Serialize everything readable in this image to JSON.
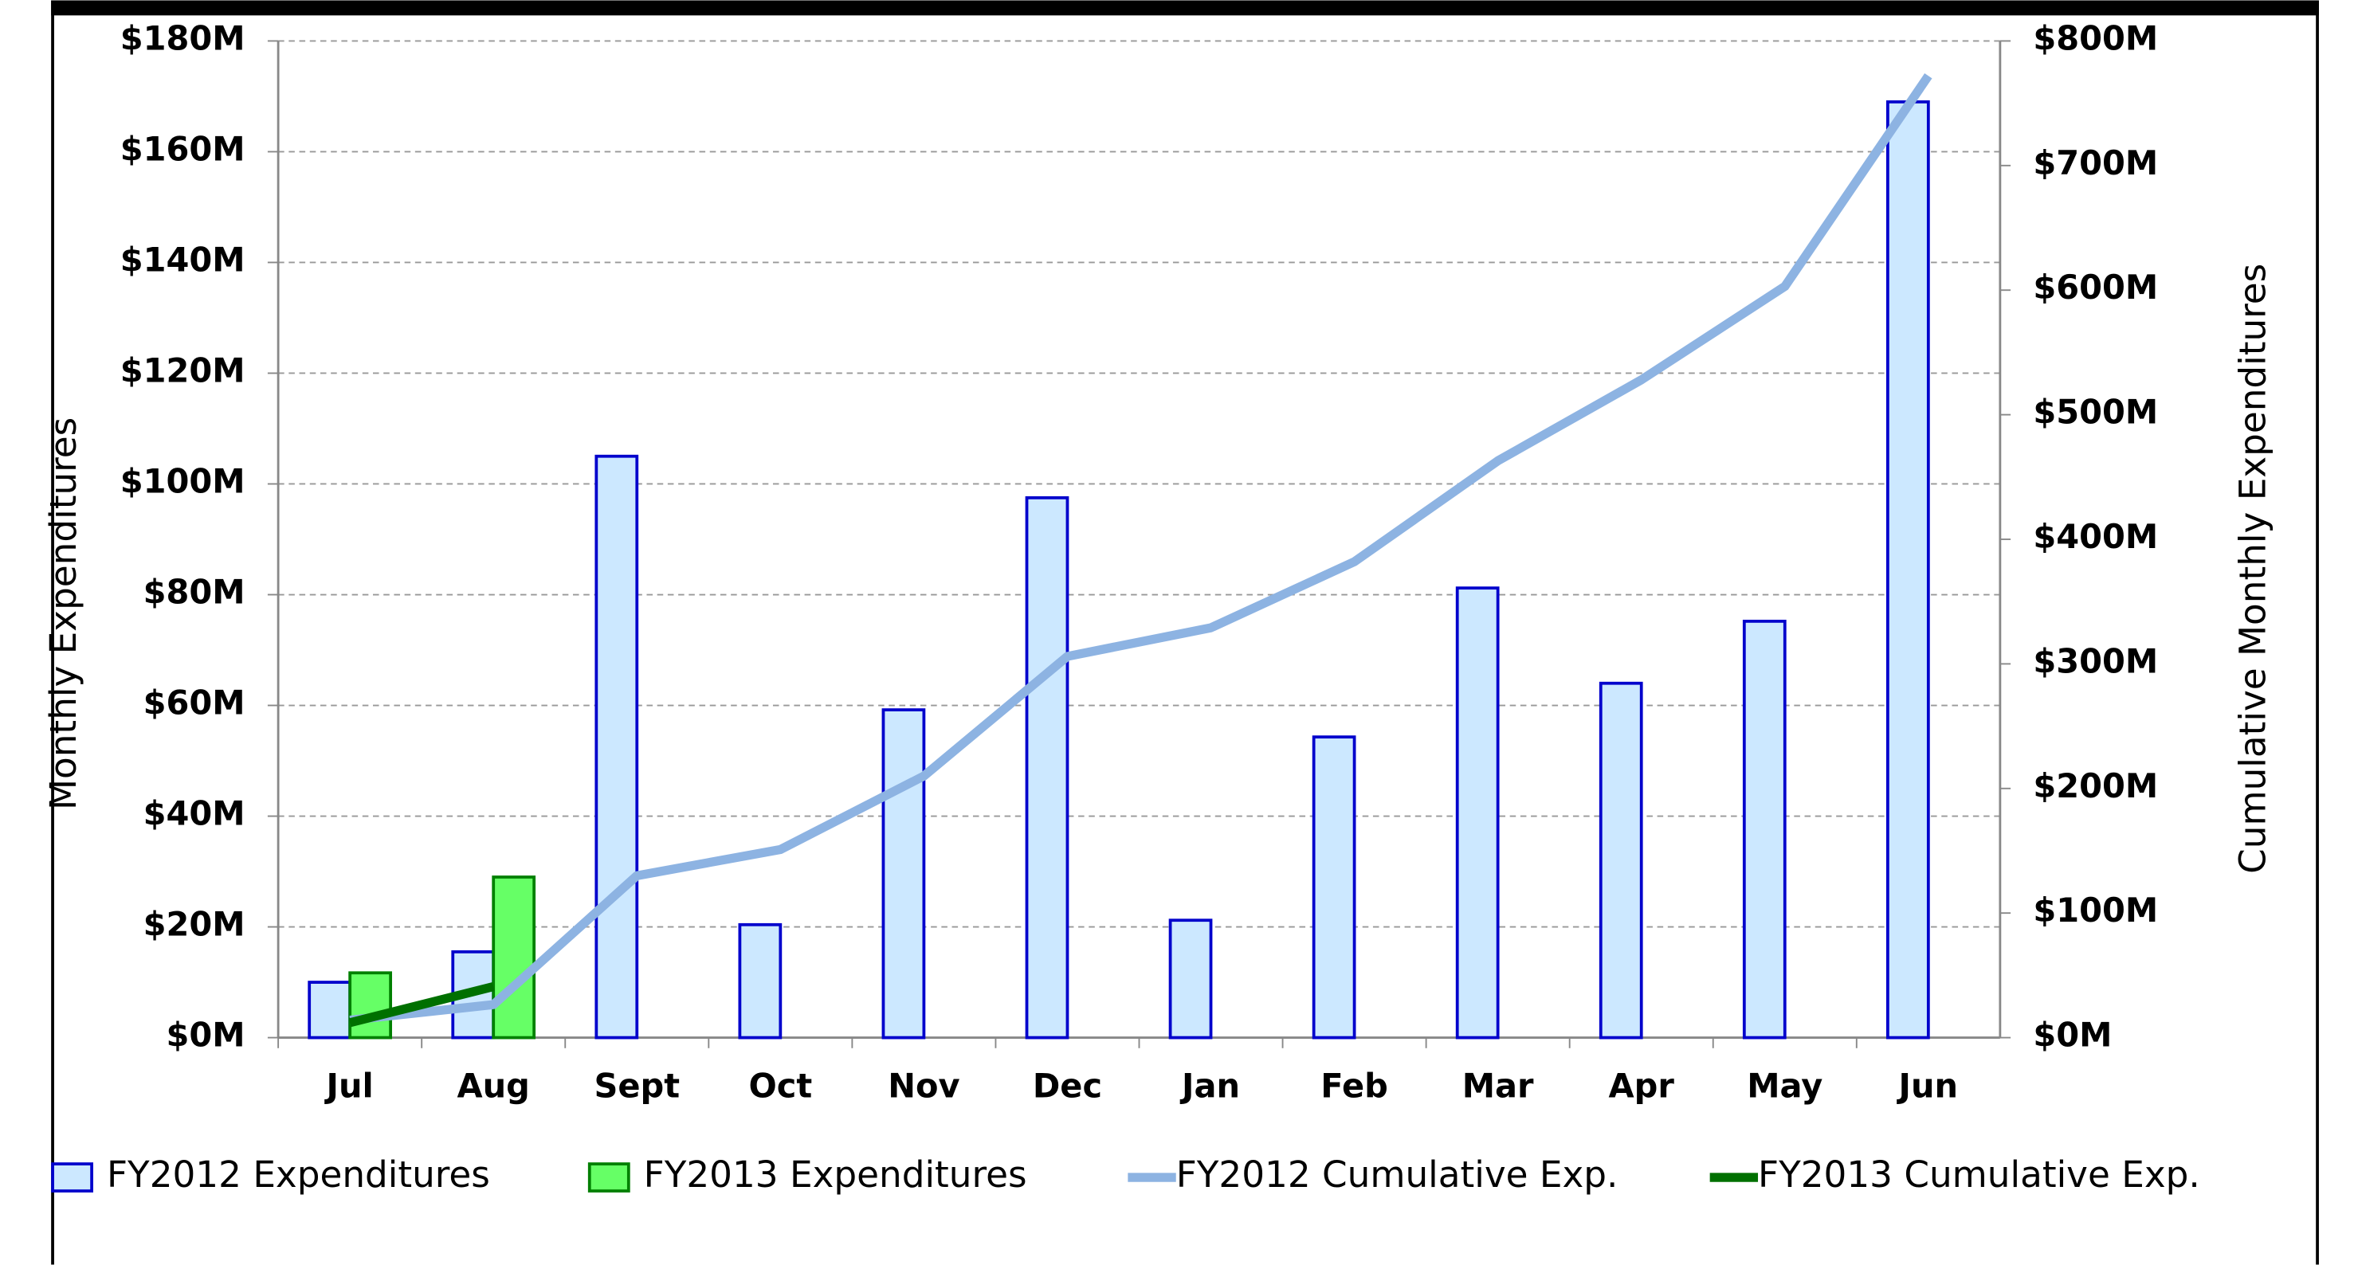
{
  "chart_data": {
    "type": "bar",
    "categories": [
      "Jul",
      "Aug",
      "Sept",
      "Oct",
      "Nov",
      "Dec",
      "Jan",
      "Feb",
      "Mar",
      "Apr",
      "May",
      "Jun"
    ],
    "y_label": "Monthly Expenditures",
    "y2_label": "Cumulative Monthly Expenditures",
    "series": [
      {
        "name": "FY2012 Expenditures",
        "type": "bar",
        "color": "#cce8ff",
        "edge": "#0000cc",
        "values": [
          10,
          15.5,
          105,
          20.4,
          59.2,
          97.5,
          21.2,
          54.3,
          81.2,
          64,
          75.2,
          169
        ]
      },
      {
        "name": "FY2013 Expenditures",
        "type": "bar",
        "color": "#66ff66",
        "edge": "#008000",
        "values": [
          11.7,
          29,
          null,
          null,
          null,
          null,
          null,
          null,
          null,
          null,
          null,
          null
        ]
      },
      {
        "name": "FY2012 Cumulative Exp.",
        "type": "line",
        "axis": "y2",
        "color": "#8db3e2",
        "values": [
          14,
          26.5,
          130,
          151,
          210,
          306,
          329,
          382,
          463,
          528,
          603,
          772
        ]
      },
      {
        "name": "FY2013 Cumulative Exp.",
        "type": "line",
        "axis": "y2",
        "color": "#007000",
        "values": [
          12,
          41,
          null,
          null,
          null,
          null,
          null,
          null,
          null,
          null,
          null,
          null
        ]
      }
    ],
    "ylim": [
      0,
      180
    ],
    "yticks": [
      {
        "value": 0,
        "label": "$0M"
      },
      {
        "value": 20,
        "label": "$20M"
      },
      {
        "value": 40,
        "label": "$40M"
      },
      {
        "value": 60,
        "label": "$60M"
      },
      {
        "value": 80,
        "label": "$80M"
      },
      {
        "value": 100,
        "label": "$100M"
      },
      {
        "value": 120,
        "label": "$120M"
      },
      {
        "value": 140,
        "label": "$140M"
      },
      {
        "value": 160,
        "label": "$160M"
      },
      {
        "value": 180,
        "label": "$180M"
      }
    ],
    "y2lim": [
      0,
      800
    ],
    "y2ticks": [
      {
        "value": 0,
        "label": "$0M"
      },
      {
        "value": 100,
        "label": "$100M"
      },
      {
        "value": 200,
        "label": "$200M"
      },
      {
        "value": 300,
        "label": "$300M"
      },
      {
        "value": 400,
        "label": "$400M"
      },
      {
        "value": 500,
        "label": "$500M"
      },
      {
        "value": 600,
        "label": "$600M"
      },
      {
        "value": 700,
        "label": "$700M"
      },
      {
        "value": 800,
        "label": "$800M"
      }
    ],
    "grid": true
  }
}
